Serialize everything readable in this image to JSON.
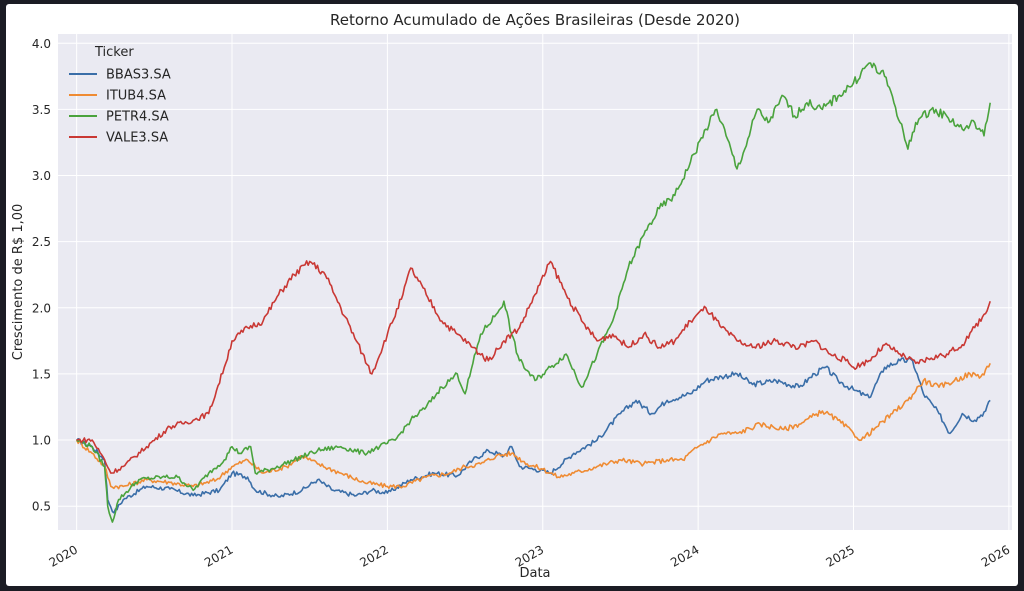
{
  "chart_data": {
    "type": "line",
    "title": "Retorno Acumulado de Ações Brasileiras (Desde 2020)",
    "xlabel": "Data",
    "ylabel": "Crescimento de R$ 1,00",
    "xlim": [
      2019.88,
      2026.02
    ],
    "ylim": [
      0.32,
      4.07
    ],
    "x_ticks": [
      2020,
      2021,
      2022,
      2023,
      2024,
      2025,
      2026
    ],
    "x_tick_labels": [
      "2020",
      "2021",
      "2022",
      "2023",
      "2024",
      "2025",
      "2026"
    ],
    "y_ticks": [
      0.5,
      1.0,
      1.5,
      2.0,
      2.5,
      3.0,
      3.5,
      4.0
    ],
    "y_tick_labels": [
      "0.5",
      "1.0",
      "1.5",
      "2.0",
      "2.5",
      "3.0",
      "3.5",
      "4.0"
    ],
    "grid": true,
    "background": "#eaeaf2",
    "legend": {
      "title": "Ticker",
      "placement": "top-left"
    },
    "series": [
      {
        "name": "BBAS3.SA",
        "color": "#3a6ea8",
        "points": [
          [
            2020.0,
            1.0
          ],
          [
            2020.1,
            0.95
          ],
          [
            2020.18,
            0.85
          ],
          [
            2020.2,
            0.55
          ],
          [
            2020.24,
            0.45
          ],
          [
            2020.3,
            0.55
          ],
          [
            2020.45,
            0.65
          ],
          [
            2020.6,
            0.63
          ],
          [
            2020.75,
            0.58
          ],
          [
            2020.92,
            0.62
          ],
          [
            2021.0,
            0.75
          ],
          [
            2021.1,
            0.72
          ],
          [
            2021.15,
            0.62
          ],
          [
            2021.3,
            0.57
          ],
          [
            2021.45,
            0.62
          ],
          [
            2021.55,
            0.7
          ],
          [
            2021.65,
            0.62
          ],
          [
            2021.8,
            0.58
          ],
          [
            2021.9,
            0.62
          ],
          [
            2022.0,
            0.6
          ],
          [
            2022.15,
            0.7
          ],
          [
            2022.3,
            0.75
          ],
          [
            2022.45,
            0.73
          ],
          [
            2022.55,
            0.85
          ],
          [
            2022.65,
            0.92
          ],
          [
            2022.75,
            0.88
          ],
          [
            2022.8,
            0.95
          ],
          [
            2022.85,
            0.8
          ],
          [
            2022.95,
            0.78
          ],
          [
            2023.05,
            0.75
          ],
          [
            2023.2,
            0.9
          ],
          [
            2023.35,
            1.0
          ],
          [
            2023.5,
            1.2
          ],
          [
            2023.6,
            1.3
          ],
          [
            2023.7,
            1.2
          ],
          [
            2023.8,
            1.3
          ],
          [
            2023.95,
            1.35
          ],
          [
            2024.05,
            1.45
          ],
          [
            2024.15,
            1.48
          ],
          [
            2024.25,
            1.5
          ],
          [
            2024.35,
            1.42
          ],
          [
            2024.5,
            1.45
          ],
          [
            2024.65,
            1.4
          ],
          [
            2024.75,
            1.5
          ],
          [
            2024.82,
            1.55
          ],
          [
            2024.9,
            1.45
          ],
          [
            2025.0,
            1.38
          ],
          [
            2025.1,
            1.32
          ],
          [
            2025.2,
            1.55
          ],
          [
            2025.3,
            1.6
          ],
          [
            2025.38,
            1.6
          ],
          [
            2025.45,
            1.35
          ],
          [
            2025.55,
            1.2
          ],
          [
            2025.62,
            1.05
          ],
          [
            2025.7,
            1.2
          ],
          [
            2025.78,
            1.15
          ],
          [
            2025.85,
            1.22
          ],
          [
            2025.88,
            1.3
          ]
        ]
      },
      {
        "name": "ITUB4.SA",
        "color": "#ef8b33",
        "points": [
          [
            2020.0,
            1.0
          ],
          [
            2020.1,
            0.9
          ],
          [
            2020.18,
            0.8
          ],
          [
            2020.22,
            0.65
          ],
          [
            2020.3,
            0.65
          ],
          [
            2020.45,
            0.7
          ],
          [
            2020.6,
            0.68
          ],
          [
            2020.75,
            0.65
          ],
          [
            2020.9,
            0.7
          ],
          [
            2021.0,
            0.8
          ],
          [
            2021.1,
            0.85
          ],
          [
            2021.2,
            0.75
          ],
          [
            2021.35,
            0.8
          ],
          [
            2021.45,
            0.88
          ],
          [
            2021.55,
            0.82
          ],
          [
            2021.7,
            0.75
          ],
          [
            2021.85,
            0.68
          ],
          [
            2022.0,
            0.65
          ],
          [
            2022.1,
            0.65
          ],
          [
            2022.25,
            0.72
          ],
          [
            2022.4,
            0.75
          ],
          [
            2022.5,
            0.8
          ],
          [
            2022.6,
            0.82
          ],
          [
            2022.7,
            0.88
          ],
          [
            2022.8,
            0.9
          ],
          [
            2022.9,
            0.82
          ],
          [
            2023.0,
            0.78
          ],
          [
            2023.1,
            0.72
          ],
          [
            2023.2,
            0.75
          ],
          [
            2023.35,
            0.8
          ],
          [
            2023.5,
            0.85
          ],
          [
            2023.65,
            0.82
          ],
          [
            2023.8,
            0.85
          ],
          [
            2023.9,
            0.85
          ],
          [
            2024.0,
            0.95
          ],
          [
            2024.15,
            1.05
          ],
          [
            2024.25,
            1.05
          ],
          [
            2024.4,
            1.12
          ],
          [
            2024.55,
            1.08
          ],
          [
            2024.65,
            1.12
          ],
          [
            2024.8,
            1.22
          ],
          [
            2024.9,
            1.15
          ],
          [
            2025.0,
            1.05
          ],
          [
            2025.05,
            1.0
          ],
          [
            2025.15,
            1.1
          ],
          [
            2025.25,
            1.2
          ],
          [
            2025.35,
            1.3
          ],
          [
            2025.45,
            1.45
          ],
          [
            2025.55,
            1.4
          ],
          [
            2025.65,
            1.45
          ],
          [
            2025.75,
            1.5
          ],
          [
            2025.82,
            1.48
          ],
          [
            2025.88,
            1.58
          ]
        ]
      },
      {
        "name": "PETR4.SA",
        "color": "#4aa33d",
        "points": [
          [
            2020.0,
            1.0
          ],
          [
            2020.1,
            0.95
          ],
          [
            2020.18,
            0.8
          ],
          [
            2020.2,
            0.5
          ],
          [
            2020.23,
            0.38
          ],
          [
            2020.27,
            0.55
          ],
          [
            2020.4,
            0.7
          ],
          [
            2020.55,
            0.72
          ],
          [
            2020.65,
            0.72
          ],
          [
            2020.75,
            0.62
          ],
          [
            2020.85,
            0.75
          ],
          [
            2020.95,
            0.85
          ],
          [
            2021.0,
            0.95
          ],
          [
            2021.05,
            0.9
          ],
          [
            2021.12,
            0.95
          ],
          [
            2021.15,
            0.75
          ],
          [
            2021.25,
            0.78
          ],
          [
            2021.4,
            0.85
          ],
          [
            2021.55,
            0.92
          ],
          [
            2021.7,
            0.95
          ],
          [
            2021.85,
            0.9
          ],
          [
            2021.95,
            0.95
          ],
          [
            2022.05,
            1.0
          ],
          [
            2022.15,
            1.15
          ],
          [
            2022.25,
            1.25
          ],
          [
            2022.35,
            1.4
          ],
          [
            2022.45,
            1.5
          ],
          [
            2022.5,
            1.35
          ],
          [
            2022.6,
            1.8
          ],
          [
            2022.7,
            1.95
          ],
          [
            2022.75,
            2.05
          ],
          [
            2022.8,
            1.8
          ],
          [
            2022.85,
            1.6
          ],
          [
            2022.95,
            1.45
          ],
          [
            2023.05,
            1.55
          ],
          [
            2023.15,
            1.65
          ],
          [
            2023.25,
            1.4
          ],
          [
            2023.35,
            1.65
          ],
          [
            2023.45,
            1.9
          ],
          [
            2023.55,
            2.3
          ],
          [
            2023.65,
            2.55
          ],
          [
            2023.75,
            2.75
          ],
          [
            2023.85,
            2.85
          ],
          [
            2023.95,
            3.1
          ],
          [
            2024.05,
            3.35
          ],
          [
            2024.12,
            3.5
          ],
          [
            2024.18,
            3.3
          ],
          [
            2024.25,
            3.05
          ],
          [
            2024.3,
            3.2
          ],
          [
            2024.38,
            3.5
          ],
          [
            2024.45,
            3.4
          ],
          [
            2024.55,
            3.6
          ],
          [
            2024.62,
            3.45
          ],
          [
            2024.7,
            3.55
          ],
          [
            2024.8,
            3.5
          ],
          [
            2024.9,
            3.6
          ],
          [
            2025.0,
            3.7
          ],
          [
            2025.1,
            3.85
          ],
          [
            2025.2,
            3.75
          ],
          [
            2025.25,
            3.6
          ],
          [
            2025.3,
            3.4
          ],
          [
            2025.35,
            3.2
          ],
          [
            2025.4,
            3.4
          ],
          [
            2025.5,
            3.5
          ],
          [
            2025.6,
            3.45
          ],
          [
            2025.7,
            3.35
          ],
          [
            2025.78,
            3.4
          ],
          [
            2025.84,
            3.3
          ],
          [
            2025.88,
            3.55
          ]
        ]
      },
      {
        "name": "VALE3.SA",
        "color": "#c93834",
        "points": [
          [
            2020.0,
            1.0
          ],
          [
            2020.1,
            1.0
          ],
          [
            2020.18,
            0.85
          ],
          [
            2020.22,
            0.75
          ],
          [
            2020.3,
            0.8
          ],
          [
            2020.45,
            0.95
          ],
          [
            2020.6,
            1.1
          ],
          [
            2020.75,
            1.15
          ],
          [
            2020.85,
            1.2
          ],
          [
            2020.95,
            1.55
          ],
          [
            2021.0,
            1.75
          ],
          [
            2021.1,
            1.85
          ],
          [
            2021.2,
            1.9
          ],
          [
            2021.3,
            2.1
          ],
          [
            2021.4,
            2.25
          ],
          [
            2021.5,
            2.35
          ],
          [
            2021.6,
            2.25
          ],
          [
            2021.7,
            2.0
          ],
          [
            2021.8,
            1.75
          ],
          [
            2021.9,
            1.5
          ],
          [
            2022.0,
            1.8
          ],
          [
            2022.1,
            2.1
          ],
          [
            2022.15,
            2.3
          ],
          [
            2022.25,
            2.1
          ],
          [
            2022.35,
            1.9
          ],
          [
            2022.45,
            1.8
          ],
          [
            2022.55,
            1.7
          ],
          [
            2022.65,
            1.6
          ],
          [
            2022.75,
            1.75
          ],
          [
            2022.85,
            1.85
          ],
          [
            2022.95,
            2.1
          ],
          [
            2023.05,
            2.35
          ],
          [
            2023.15,
            2.1
          ],
          [
            2023.25,
            1.9
          ],
          [
            2023.35,
            1.75
          ],
          [
            2023.45,
            1.8
          ],
          [
            2023.55,
            1.7
          ],
          [
            2023.65,
            1.8
          ],
          [
            2023.75,
            1.7
          ],
          [
            2023.85,
            1.75
          ],
          [
            2023.95,
            1.9
          ],
          [
            2024.05,
            2.0
          ],
          [
            2024.15,
            1.85
          ],
          [
            2024.25,
            1.75
          ],
          [
            2024.35,
            1.7
          ],
          [
            2024.5,
            1.75
          ],
          [
            2024.65,
            1.7
          ],
          [
            2024.75,
            1.75
          ],
          [
            2024.85,
            1.65
          ],
          [
            2024.95,
            1.6
          ],
          [
            2025.0,
            1.55
          ],
          [
            2025.1,
            1.6
          ],
          [
            2025.2,
            1.72
          ],
          [
            2025.3,
            1.65
          ],
          [
            2025.4,
            1.58
          ],
          [
            2025.5,
            1.62
          ],
          [
            2025.6,
            1.65
          ],
          [
            2025.7,
            1.72
          ],
          [
            2025.78,
            1.85
          ],
          [
            2025.84,
            1.95
          ],
          [
            2025.88,
            2.05
          ]
        ]
      }
    ]
  }
}
